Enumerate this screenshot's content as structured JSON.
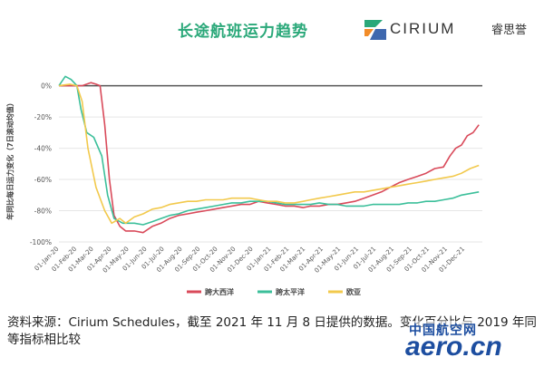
{
  "chart_data": {
    "type": "line",
    "title": "长途航班运力趋势",
    "ylabel": "年同比每日运力变化（7日滚动均值）",
    "xlabel": "",
    "ylim": [
      -100,
      5
    ],
    "yticks": [
      "0%",
      "-20%",
      "-40%",
      "-60%",
      "-80%",
      "-100%"
    ],
    "ytick_values": [
      0,
      -20,
      -40,
      -60,
      -80,
      -100
    ],
    "xticks": [
      "01-Jan-20",
      "01-Feb-20",
      "01-Mar-20",
      "01-Apr-20",
      "01-May-20",
      "01-Jun-20",
      "01-Jul-20",
      "01-Aug-20",
      "01-Sep-20",
      "01-Oct-20",
      "01-Nov-20",
      "01-Dec-20",
      "01-Jan-21",
      "01-Feb-21",
      "01-Mar-21",
      "01-Apr-21",
      "01-May-21",
      "01-Jun-21",
      "01-Jul-21",
      "01-Aug-21",
      "01-Sep-21",
      "01-Oct-21",
      "01-Nov-21",
      "01-Dec-21"
    ],
    "zero_line": true,
    "grid": true,
    "legend_position": "bottom",
    "series": [
      {
        "name": "跨大西洋",
        "color": "#d94a5a",
        "points": [
          [
            "2020-01-01",
            0
          ],
          [
            "2020-02-10",
            0
          ],
          [
            "2020-02-25",
            2
          ],
          [
            "2020-03-05",
            1
          ],
          [
            "2020-03-12",
            0
          ],
          [
            "2020-03-20",
            -25
          ],
          [
            "2020-03-28",
            -60
          ],
          [
            "2020-04-05",
            -83
          ],
          [
            "2020-04-15",
            -90
          ],
          [
            "2020-04-25",
            -93
          ],
          [
            "2020-05-10",
            -93
          ],
          [
            "2020-05-25",
            -94
          ],
          [
            "2020-06-10",
            -90
          ],
          [
            "2020-06-25",
            -88
          ],
          [
            "2020-07-10",
            -85
          ],
          [
            "2020-07-25",
            -83
          ],
          [
            "2020-08-10",
            -82
          ],
          [
            "2020-08-25",
            -81
          ],
          [
            "2020-09-10",
            -80
          ],
          [
            "2020-09-25",
            -79
          ],
          [
            "2020-10-10",
            -78
          ],
          [
            "2020-10-25",
            -77
          ],
          [
            "2020-11-10",
            -76
          ],
          [
            "2020-11-25",
            -76
          ],
          [
            "2020-12-10",
            -74
          ],
          [
            "2020-12-25",
            -75
          ],
          [
            "2021-01-10",
            -76
          ],
          [
            "2021-01-25",
            -77
          ],
          [
            "2021-02-10",
            -77
          ],
          [
            "2021-02-25",
            -78
          ],
          [
            "2021-03-10",
            -77
          ],
          [
            "2021-03-25",
            -77
          ],
          [
            "2021-04-10",
            -76
          ],
          [
            "2021-04-25",
            -76
          ],
          [
            "2021-05-10",
            -75
          ],
          [
            "2021-05-25",
            -74
          ],
          [
            "2021-06-10",
            -72
          ],
          [
            "2021-06-25",
            -70
          ],
          [
            "2021-07-10",
            -68
          ],
          [
            "2021-07-25",
            -65
          ],
          [
            "2021-08-10",
            -62
          ],
          [
            "2021-08-25",
            -60
          ],
          [
            "2021-09-10",
            -58
          ],
          [
            "2021-09-25",
            -56
          ],
          [
            "2021-10-10",
            -53
          ],
          [
            "2021-10-25",
            -52
          ],
          [
            "2021-11-05",
            -45
          ],
          [
            "2021-11-15",
            -40
          ],
          [
            "2021-11-25",
            -38
          ],
          [
            "2021-12-05",
            -32
          ],
          [
            "2021-12-15",
            -30
          ],
          [
            "2021-12-25",
            -25
          ]
        ]
      },
      {
        "name": "跨太平洋",
        "color": "#3bbf9a",
        "points": [
          [
            "2020-01-01",
            0
          ],
          [
            "2020-01-12",
            6
          ],
          [
            "2020-01-22",
            4
          ],
          [
            "2020-02-01",
            0
          ],
          [
            "2020-02-08",
            -15
          ],
          [
            "2020-02-18",
            -30
          ],
          [
            "2020-03-01",
            -33
          ],
          [
            "2020-03-15",
            -45
          ],
          [
            "2020-03-25",
            -70
          ],
          [
            "2020-04-05",
            -85
          ],
          [
            "2020-04-20",
            -88
          ],
          [
            "2020-05-10",
            -88
          ],
          [
            "2020-05-25",
            -89
          ],
          [
            "2020-06-10",
            -87
          ],
          [
            "2020-06-25",
            -85
          ],
          [
            "2020-07-10",
            -83
          ],
          [
            "2020-07-25",
            -82
          ],
          [
            "2020-08-10",
            -80
          ],
          [
            "2020-08-25",
            -79
          ],
          [
            "2020-09-10",
            -78
          ],
          [
            "2020-09-25",
            -77
          ],
          [
            "2020-10-10",
            -76
          ],
          [
            "2020-10-25",
            -75
          ],
          [
            "2020-11-10",
            -75
          ],
          [
            "2020-11-25",
            -74
          ],
          [
            "2020-12-10",
            -74
          ],
          [
            "2020-12-25",
            -74
          ],
          [
            "2021-01-10",
            -75
          ],
          [
            "2021-01-25",
            -76
          ],
          [
            "2021-02-10",
            -76
          ],
          [
            "2021-02-25",
            -76
          ],
          [
            "2021-03-10",
            -76
          ],
          [
            "2021-03-25",
            -75
          ],
          [
            "2021-04-10",
            -76
          ],
          [
            "2021-04-25",
            -76
          ],
          [
            "2021-05-10",
            -77
          ],
          [
            "2021-05-25",
            -77
          ],
          [
            "2021-06-10",
            -77
          ],
          [
            "2021-06-25",
            -76
          ],
          [
            "2021-07-10",
            -76
          ],
          [
            "2021-07-25",
            -76
          ],
          [
            "2021-08-10",
            -76
          ],
          [
            "2021-08-25",
            -75
          ],
          [
            "2021-09-10",
            -75
          ],
          [
            "2021-09-25",
            -74
          ],
          [
            "2021-10-10",
            -74
          ],
          [
            "2021-10-25",
            -73
          ],
          [
            "2021-11-10",
            -72
          ],
          [
            "2021-11-25",
            -70
          ],
          [
            "2021-12-10",
            -69
          ],
          [
            "2021-12-25",
            -68
          ]
        ]
      },
      {
        "name": "欧亚",
        "color": "#f2c94c",
        "points": [
          [
            "2020-01-01",
            0
          ],
          [
            "2020-01-20",
            1
          ],
          [
            "2020-02-01",
            0
          ],
          [
            "2020-02-10",
            -10
          ],
          [
            "2020-02-20",
            -40
          ],
          [
            "2020-03-05",
            -65
          ],
          [
            "2020-03-20",
            -80
          ],
          [
            "2020-04-01",
            -88
          ],
          [
            "2020-04-15",
            -85
          ],
          [
            "2020-04-25",
            -88
          ],
          [
            "2020-05-10",
            -84
          ],
          [
            "2020-05-25",
            -82
          ],
          [
            "2020-06-10",
            -79
          ],
          [
            "2020-06-25",
            -78
          ],
          [
            "2020-07-10",
            -76
          ],
          [
            "2020-07-25",
            -75
          ],
          [
            "2020-08-10",
            -74
          ],
          [
            "2020-08-25",
            -74
          ],
          [
            "2020-09-10",
            -73
          ],
          [
            "2020-09-25",
            -73
          ],
          [
            "2020-10-10",
            -73
          ],
          [
            "2020-10-25",
            -72
          ],
          [
            "2020-11-10",
            -72
          ],
          [
            "2020-11-25",
            -72
          ],
          [
            "2020-12-10",
            -73
          ],
          [
            "2020-12-25",
            -74
          ],
          [
            "2021-01-10",
            -74
          ],
          [
            "2021-01-25",
            -75
          ],
          [
            "2021-02-10",
            -75
          ],
          [
            "2021-02-25",
            -74
          ],
          [
            "2021-03-10",
            -73
          ],
          [
            "2021-03-25",
            -72
          ],
          [
            "2021-04-10",
            -71
          ],
          [
            "2021-04-25",
            -70
          ],
          [
            "2021-05-10",
            -69
          ],
          [
            "2021-05-25",
            -68
          ],
          [
            "2021-06-10",
            -68
          ],
          [
            "2021-06-25",
            -67
          ],
          [
            "2021-07-10",
            -66
          ],
          [
            "2021-07-25",
            -65
          ],
          [
            "2021-08-10",
            -64
          ],
          [
            "2021-08-25",
            -63
          ],
          [
            "2021-09-10",
            -62
          ],
          [
            "2021-09-25",
            -61
          ],
          [
            "2021-10-10",
            -60
          ],
          [
            "2021-10-25",
            -59
          ],
          [
            "2021-11-10",
            -58
          ],
          [
            "2021-11-25",
            -56
          ],
          [
            "2021-12-10",
            -53
          ],
          [
            "2021-12-25",
            -51
          ]
        ]
      }
    ]
  },
  "logo": {
    "word": "CIRIUM",
    "cn": "睿思誉"
  },
  "caption": "资料来源：Cirium Schedules，截至 2021 年 11 月 8 日提供的数据。变化百分比与 2019 年同等指标相比较",
  "watermark": {
    "cn": "中国航空网",
    "en": "aero.cn"
  }
}
